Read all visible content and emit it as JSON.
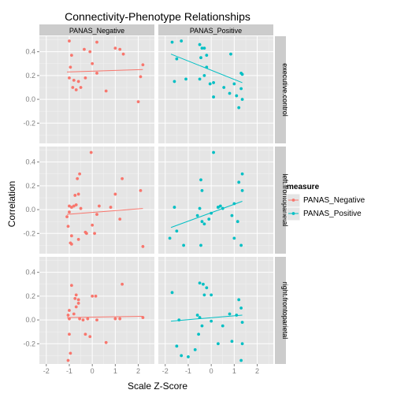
{
  "colors": {
    "negative": "#F8766D",
    "positive": "#00BFC4",
    "panel_bg": "#E5E5E5",
    "strip_bg": "#CCCCCC",
    "grid_major": "#FFFFFF",
    "grid_minor": "#F2F2F2",
    "tick_text": "#7F7F7F"
  },
  "chart_data": {
    "type": "scatter",
    "title": "Connectivity-Phenotype Relationships",
    "xlabel": "Scale Z-Score",
    "ylabel": "Correlation",
    "xlim": [
      -2.3,
      2.7
    ],
    "ylim": [
      -0.37,
      0.53
    ],
    "x_ticks": [
      -2,
      -1,
      0,
      1,
      2
    ],
    "y_ticks": [
      -0.2,
      0.0,
      0.2,
      0.4
    ],
    "x_tick_labels": [
      "-2",
      "-1",
      "0",
      "1",
      "2"
    ],
    "y_tick_labels": [
      "-0.2",
      "0.0",
      "0.2",
      "0.4"
    ],
    "columns": [
      "PANAS_Negative",
      "PANAS_Positive"
    ],
    "rows": [
      "executive.control",
      "left.frontoparietal",
      "right.frontoparietal"
    ],
    "legend": {
      "title": "measure",
      "entries": [
        "PANAS_Negative",
        "PANAS_Positive"
      ],
      "position": "right"
    },
    "panels": [
      {
        "row": "executive.control",
        "column": "PANAS_Negative",
        "measure": "PANAS_Negative",
        "points": [
          [
            -1.0,
            0.49
          ],
          [
            -0.9,
            0.37
          ],
          [
            -0.95,
            0.27
          ],
          [
            -1.0,
            0.18
          ],
          [
            -0.8,
            0.16
          ],
          [
            -0.6,
            0.15
          ],
          [
            -0.85,
            0.1
          ],
          [
            -0.7,
            0.08
          ],
          [
            -0.5,
            0.1
          ],
          [
            -0.3,
            0.18
          ],
          [
            -0.35,
            0.42
          ],
          [
            -0.1,
            0.4
          ],
          [
            0.0,
            0.3
          ],
          [
            0.2,
            0.48
          ],
          [
            0.2,
            0.22
          ],
          [
            0.6,
            0.07
          ],
          [
            1.0,
            0.43
          ],
          [
            1.2,
            0.42
          ],
          [
            1.35,
            0.38
          ],
          [
            2.1,
            0.19
          ],
          [
            2.2,
            0.29
          ],
          [
            2.0,
            -0.02
          ]
        ],
        "line": {
          "x": [
            -1.1,
            2.2
          ],
          "y": [
            0.23,
            0.25
          ]
        }
      },
      {
        "row": "executive.control",
        "column": "PANAS_Positive",
        "measure": "PANAS_Positive",
        "points": [
          [
            -1.7,
            0.48
          ],
          [
            -1.5,
            0.34
          ],
          [
            -1.6,
            0.15
          ],
          [
            -1.1,
            0.17
          ],
          [
            -1.3,
            0.49
          ],
          [
            -0.5,
            0.46
          ],
          [
            -0.4,
            0.43
          ],
          [
            -0.3,
            0.43
          ],
          [
            -0.45,
            0.35
          ],
          [
            -0.2,
            0.37
          ],
          [
            -0.2,
            0.27
          ],
          [
            -0.3,
            0.2
          ],
          [
            -0.5,
            0.17
          ],
          [
            -0.05,
            0.13
          ],
          [
            0.1,
            0.14
          ],
          [
            0.55,
            0.1
          ],
          [
            0.85,
            0.38
          ],
          [
            0.8,
            0.05
          ],
          [
            1.0,
            0.13
          ],
          [
            1.1,
            0.03
          ],
          [
            1.3,
            0.09
          ],
          [
            1.35,
            0.21
          ],
          [
            1.3,
            0.22
          ],
          [
            1.2,
            -0.07
          ],
          [
            1.35,
            0.0
          ],
          [
            0.1,
            0.02
          ]
        ],
        "line": {
          "x": [
            -1.75,
            1.35
          ],
          "y": [
            0.38,
            0.14
          ]
        }
      },
      {
        "row": "left.frontoparietal",
        "column": "PANAS_Negative",
        "measure": "PANAS_Negative",
        "points": [
          [
            -0.05,
            0.48
          ],
          [
            -0.55,
            0.3
          ],
          [
            -0.65,
            0.26
          ],
          [
            -0.75,
            0.12
          ],
          [
            -0.6,
            0.13
          ],
          [
            -1.0,
            0.03
          ],
          [
            -0.9,
            0.02
          ],
          [
            -0.7,
            0.04
          ],
          [
            -0.8,
            0.03
          ],
          [
            -0.5,
            0.01
          ],
          [
            -1.0,
            -0.02
          ],
          [
            -1.1,
            -0.06
          ],
          [
            -1.05,
            -0.14
          ],
          [
            -0.9,
            -0.22
          ],
          [
            -0.95,
            -0.28
          ],
          [
            -0.9,
            -0.29
          ],
          [
            -0.6,
            -0.25
          ],
          [
            -0.3,
            -0.19
          ],
          [
            -0.25,
            -0.2
          ],
          [
            0.0,
            -0.13
          ],
          [
            0.1,
            -0.2
          ],
          [
            0.2,
            -0.04
          ],
          [
            0.3,
            0.03
          ],
          [
            0.8,
            0.02
          ],
          [
            1.3,
            0.26
          ],
          [
            1.0,
            0.13
          ],
          [
            1.2,
            -0.08
          ],
          [
            2.1,
            0.16
          ],
          [
            2.2,
            -0.31
          ]
        ],
        "line": {
          "x": [
            -1.1,
            2.2
          ],
          "y": [
            -0.04,
            0.01
          ]
        }
      },
      {
        "row": "left.frontoparietal",
        "column": "PANAS_Positive",
        "measure": "PANAS_Positive",
        "points": [
          [
            -1.8,
            -0.24
          ],
          [
            -1.5,
            -0.18
          ],
          [
            -1.2,
            -0.3
          ],
          [
            -1.6,
            0.02
          ],
          [
            -0.45,
            0.25
          ],
          [
            -0.4,
            0.16
          ],
          [
            -0.5,
            0.01
          ],
          [
            -0.6,
            -0.05
          ],
          [
            -0.1,
            -0.08
          ],
          [
            -0.4,
            -0.1
          ],
          [
            -0.3,
            -0.12
          ],
          [
            -0.45,
            -0.3
          ],
          [
            0.0,
            -0.03
          ],
          [
            0.3,
            0.02
          ],
          [
            0.4,
            0.03
          ],
          [
            0.1,
            0.48
          ],
          [
            0.3,
            0.02
          ],
          [
            0.5,
            0.01
          ],
          [
            0.9,
            -0.05
          ],
          [
            1.0,
            -0.24
          ],
          [
            1.2,
            0.23
          ],
          [
            1.35,
            0.3
          ],
          [
            1.35,
            0.16
          ],
          [
            1.15,
            -0.1
          ],
          [
            1.3,
            -0.3
          ],
          [
            1.0,
            0.05
          ]
        ],
        "line": {
          "x": [
            -1.75,
            1.35
          ],
          "y": [
            -0.15,
            0.07
          ]
        }
      },
      {
        "row": "right.frontoparietal",
        "column": "PANAS_Negative",
        "measure": "PANAS_Negative",
        "points": [
          [
            -0.9,
            0.29
          ],
          [
            -0.7,
            0.21
          ],
          [
            -0.75,
            0.18
          ],
          [
            -0.6,
            0.17
          ],
          [
            -0.6,
            0.14
          ],
          [
            -0.7,
            0.11
          ],
          [
            -1.0,
            0.08
          ],
          [
            -1.05,
            0.04
          ],
          [
            -1.0,
            0.01
          ],
          [
            -0.55,
            0.01
          ],
          [
            -0.4,
            0.0
          ],
          [
            -0.2,
            0.01
          ],
          [
            -1.0,
            -0.12
          ],
          [
            -0.95,
            -0.28
          ],
          [
            -1.05,
            -0.34
          ],
          [
            -0.3,
            -0.12
          ],
          [
            -0.1,
            -0.14
          ],
          [
            0.0,
            0.2
          ],
          [
            0.15,
            0.2
          ],
          [
            0.2,
            0.0
          ],
          [
            0.6,
            -0.19
          ],
          [
            1.3,
            0.3
          ],
          [
            1.0,
            0.01
          ],
          [
            1.2,
            0.01
          ],
          [
            2.2,
            0.02
          ],
          [
            -0.8,
            0.05
          ]
        ],
        "line": {
          "x": [
            -1.1,
            2.2
          ],
          "y": [
            0.02,
            0.03
          ]
        }
      },
      {
        "row": "right.frontoparietal",
        "column": "PANAS_Positive",
        "measure": "PANAS_Positive",
        "points": [
          [
            -1.7,
            0.23
          ],
          [
            -1.4,
            0.0
          ],
          [
            -1.5,
            -0.22
          ],
          [
            -1.3,
            -0.3
          ],
          [
            -1.0,
            -0.31
          ],
          [
            -0.5,
            0.31
          ],
          [
            -0.35,
            0.3
          ],
          [
            -0.2,
            0.27
          ],
          [
            0.0,
            0.21
          ],
          [
            -0.3,
            0.21
          ],
          [
            -0.6,
            0.04
          ],
          [
            -0.5,
            0.02
          ],
          [
            -0.4,
            -0.05
          ],
          [
            -0.55,
            -0.12
          ],
          [
            -0.7,
            -0.25
          ],
          [
            0.0,
            -0.01
          ],
          [
            0.5,
            -0.05
          ],
          [
            0.3,
            -0.2
          ],
          [
            0.8,
            0.05
          ],
          [
            1.2,
            0.17
          ],
          [
            1.3,
            0.1
          ],
          [
            1.1,
            0.04
          ],
          [
            1.35,
            -0.02
          ],
          [
            1.35,
            -0.2
          ],
          [
            1.3,
            -0.34
          ],
          [
            0.9,
            -0.18
          ]
        ],
        "line": {
          "x": [
            -1.75,
            1.35
          ],
          "y": [
            -0.01,
            0.04
          ]
        }
      }
    ]
  }
}
